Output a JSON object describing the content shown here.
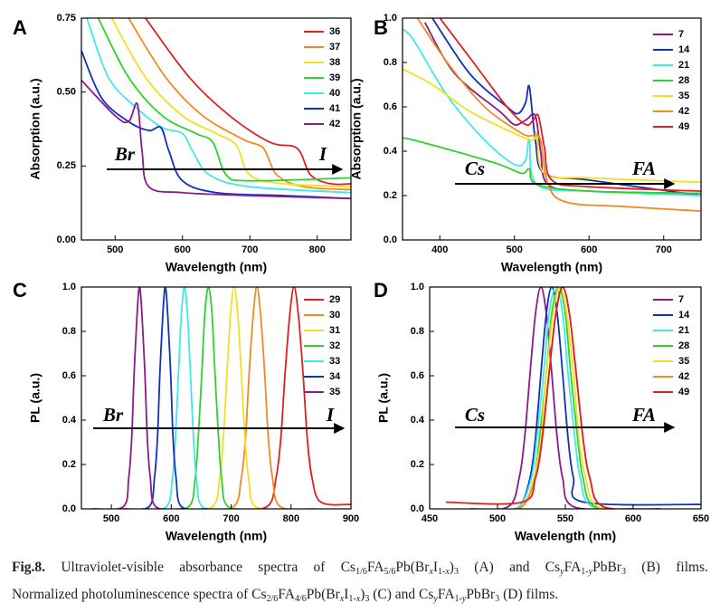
{
  "chart_data": [
    {
      "type": "line",
      "panel": "A",
      "xlabel": "Wavelength (nm)",
      "ylabel": "Absorption (a.u.)",
      "xlim": [
        450,
        850
      ],
      "ylim": [
        0,
        0.75
      ],
      "xticks": [
        500,
        600,
        700,
        800
      ],
      "yticks": [
        {
          "value": 0,
          "label": "0.00"
        },
        {
          "value": 0.25,
          "label": "0.25"
        },
        {
          "value": 0.5,
          "label": "0.50"
        },
        {
          "value": 0.75,
          "label": "0.75"
        }
      ],
      "annotations": [
        "Br",
        "I"
      ],
      "series": [
        {
          "name": "36",
          "color": "#e02020",
          "x": [
            545,
            610,
            670,
            730,
            770,
            790,
            820,
            850
          ],
          "values": [
            0.75,
            0.55,
            0.42,
            0.33,
            0.31,
            0.22,
            0.19,
            0.19
          ]
        },
        {
          "name": "37",
          "color": "#f08a24",
          "x": [
            520,
            575,
            630,
            690,
            720,
            740,
            780,
            850
          ],
          "values": [
            0.75,
            0.55,
            0.42,
            0.34,
            0.31,
            0.22,
            0.18,
            0.17
          ]
        },
        {
          "name": "38",
          "color": "#f0e020",
          "x": [
            495,
            545,
            600,
            650,
            680,
            700,
            750,
            850
          ],
          "values": [
            0.75,
            0.55,
            0.42,
            0.36,
            0.32,
            0.22,
            0.19,
            0.18
          ]
        },
        {
          "name": "39",
          "color": "#30d030",
          "x": [
            475,
            520,
            570,
            620,
            645,
            665,
            700,
            850
          ],
          "values": [
            0.75,
            0.55,
            0.42,
            0.36,
            0.33,
            0.22,
            0.2,
            0.21
          ]
        },
        {
          "name": "40",
          "color": "#40e8e8",
          "x": [
            458,
            490,
            530,
            570,
            600,
            615,
            640,
            700,
            850
          ],
          "values": [
            0.75,
            0.55,
            0.45,
            0.38,
            0.36,
            0.3,
            0.22,
            0.18,
            0.16
          ]
        },
        {
          "name": "41",
          "color": "#1030c0",
          "x": [
            450,
            480,
            520,
            550,
            568,
            580,
            600,
            650,
            750,
            850
          ],
          "values": [
            0.64,
            0.48,
            0.4,
            0.37,
            0.38,
            0.3,
            0.2,
            0.16,
            0.15,
            0.14
          ]
        },
        {
          "name": "42",
          "color": "#8b1a8b",
          "x": [
            450,
            500,
            520,
            533,
            540,
            550,
            600,
            700,
            850
          ],
          "values": [
            0.54,
            0.42,
            0.4,
            0.46,
            0.3,
            0.18,
            0.16,
            0.15,
            0.14
          ]
        }
      ]
    },
    {
      "type": "line",
      "panel": "B",
      "xlabel": "Wavelength (nm)",
      "ylabel": "Absorption (a.u.)",
      "xlim": [
        350,
        750
      ],
      "ylim": [
        0,
        1
      ],
      "xticks": [
        400,
        500,
        600,
        700
      ],
      "yticks": [
        {
          "value": 0,
          "label": "0.0"
        },
        0.2,
        0.4,
        0.6,
        0.8,
        {
          "value": 1,
          "label": "1.0"
        }
      ],
      "annotations": [
        "Cs",
        "FA"
      ],
      "series": [
        {
          "name": "7",
          "color": "#8b1a8b",
          "x": [
            380,
            420,
            480,
            500,
            515,
            528,
            535,
            545,
            600,
            750
          ],
          "values": [
            0.98,
            0.75,
            0.58,
            0.52,
            0.54,
            0.56,
            0.4,
            0.25,
            0.22,
            0.21
          ]
        },
        {
          "name": "14",
          "color": "#1030c0",
          "x": [
            390,
            440,
            490,
            505,
            515,
            520,
            528,
            540,
            600,
            750
          ],
          "values": [
            1,
            0.75,
            0.6,
            0.57,
            0.62,
            0.69,
            0.45,
            0.3,
            0.27,
            0.2
          ]
        },
        {
          "name": "21",
          "color": "#40e8e8",
          "x": [
            350,
            365,
            410,
            460,
            500,
            515,
            520,
            530,
            600,
            750
          ],
          "values": [
            0.95,
            0.9,
            0.65,
            0.45,
            0.34,
            0.36,
            0.45,
            0.25,
            0.22,
            0.2
          ]
        },
        {
          "name": "28",
          "color": "#30d030",
          "x": [
            350,
            365,
            420,
            480,
            510,
            520,
            530,
            600,
            750
          ],
          "values": [
            0.46,
            0.45,
            0.4,
            0.34,
            0.3,
            0.32,
            0.25,
            0.22,
            0.21
          ]
        },
        {
          "name": "35",
          "color": "#f0e020",
          "x": [
            350,
            390,
            440,
            500,
            525,
            530,
            540,
            600,
            750
          ],
          "values": [
            0.77,
            0.7,
            0.58,
            0.48,
            0.45,
            0.48,
            0.3,
            0.28,
            0.26
          ]
        },
        {
          "name": "42",
          "color": "#f08a24",
          "x": [
            370,
            410,
            460,
            510,
            525,
            535,
            545,
            570,
            650,
            750
          ],
          "values": [
            1,
            0.8,
            0.6,
            0.48,
            0.47,
            0.45,
            0.25,
            0.17,
            0.15,
            0.13
          ]
        },
        {
          "name": "49",
          "color": "#e02020",
          "x": [
            400,
            445,
            490,
            515,
            525,
            532,
            540,
            550,
            600,
            750
          ],
          "values": [
            1,
            0.8,
            0.6,
            0.52,
            0.54,
            0.56,
            0.42,
            0.27,
            0.24,
            0.22
          ]
        }
      ]
    },
    {
      "type": "line",
      "panel": "C",
      "xlabel": "Wavelength (nm)",
      "ylabel": "PL (a.u.)",
      "xlim": [
        450,
        900
      ],
      "ylim": [
        0,
        1
      ],
      "xticks": [
        500,
        600,
        700,
        800,
        900
      ],
      "yticks": [
        {
          "value": 0,
          "label": "0.0"
        },
        0.2,
        0.4,
        0.6,
        0.8,
        {
          "value": 1,
          "label": "1.0"
        }
      ],
      "annotations": [
        "Br",
        "I"
      ],
      "series": [
        {
          "name": "29",
          "color": "#e02020",
          "x": [
            700,
            760,
            775,
            783,
            790,
            798,
            805,
            812,
            820,
            827,
            835,
            850,
            900
          ],
          "values": [
            0,
            0.01,
            0.14,
            0.32,
            0.61,
            0.88,
            1,
            0.88,
            0.61,
            0.32,
            0.14,
            0.03,
            0.02
          ]
        },
        {
          "name": "30",
          "color": "#f08a24",
          "x": [
            650,
            704,
            717,
            724,
            730,
            737,
            743,
            749,
            756,
            762,
            769,
            782,
            840
          ],
          "values": [
            0,
            0.01,
            0.14,
            0.32,
            0.61,
            0.88,
            1,
            0.88,
            0.61,
            0.32,
            0.14,
            0.01,
            0
          ]
        },
        {
          "name": "31",
          "color": "#f0e020",
          "x": [
            620,
            669,
            681,
            687,
            693,
            699,
            705,
            711,
            717,
            723,
            729,
            741,
            800
          ],
          "values": [
            0,
            0.01,
            0.14,
            0.32,
            0.61,
            0.88,
            1,
            0.88,
            0.61,
            0.32,
            0.14,
            0.01,
            0
          ]
        },
        {
          "name": "32",
          "color": "#30d030",
          "x": [
            580,
            629,
            640,
            645,
            651,
            656,
            662,
            668,
            673,
            679,
            684,
            695,
            750
          ],
          "values": [
            0,
            0.01,
            0.14,
            0.32,
            0.61,
            0.88,
            1,
            0.88,
            0.61,
            0.32,
            0.14,
            0.01,
            0
          ]
        },
        {
          "name": "33",
          "color": "#40e8e8",
          "x": [
            550,
            592,
            602,
            607,
            612,
            617,
            622,
            627,
            632,
            637,
            642,
            652,
            700
          ],
          "values": [
            0,
            0.01,
            0.14,
            0.32,
            0.61,
            0.88,
            1,
            0.88,
            0.61,
            0.32,
            0.14,
            0.01,
            0
          ]
        },
        {
          "name": "34",
          "color": "#1030c0",
          "x": [
            520,
            563,
            572,
            577,
            581,
            586,
            590,
            594,
            599,
            603,
            608,
            617,
            660
          ],
          "values": [
            0,
            0.01,
            0.14,
            0.32,
            0.61,
            0.88,
            1,
            0.88,
            0.61,
            0.32,
            0.14,
            0.01,
            0
          ]
        },
        {
          "name": "35",
          "color": "#8b1a8b",
          "x": [
            470,
            520,
            529,
            534,
            538,
            543,
            547,
            551,
            556,
            560,
            565,
            574,
            620
          ],
          "values": [
            0,
            0.01,
            0.14,
            0.32,
            0.61,
            0.88,
            1,
            0.88,
            0.61,
            0.32,
            0.14,
            0.01,
            0
          ]
        }
      ]
    },
    {
      "type": "line",
      "panel": "D",
      "xlabel": "Wavelength (nm)",
      "ylabel": "PL (a.u.)",
      "xlim": [
        450,
        650
      ],
      "ylim": [
        0,
        1
      ],
      "xticks": [
        450,
        500,
        550,
        600,
        650
      ],
      "yticks": [
        {
          "value": 0,
          "label": "0.0"
        },
        0.2,
        0.4,
        0.6,
        0.8,
        {
          "value": 1,
          "label": "1.0"
        }
      ],
      "annotations": [
        "Cs",
        "FA"
      ],
      "series": [
        {
          "name": "7",
          "color": "#8b1a8b",
          "x": [
            480,
            508,
            516,
            520,
            524,
            528,
            532,
            536,
            540,
            544,
            548,
            556,
            600
          ],
          "values": [
            0,
            0.01,
            0.14,
            0.32,
            0.61,
            0.88,
            1,
            0.88,
            0.61,
            0.32,
            0.14,
            0.01,
            0
          ]
        },
        {
          "name": "14",
          "color": "#1030c0",
          "x": [
            500,
            516,
            524,
            528,
            532,
            536,
            540,
            544,
            548,
            552,
            556,
            564,
            650
          ],
          "values": [
            0,
            0.01,
            0.14,
            0.32,
            0.61,
            0.88,
            1,
            0.88,
            0.61,
            0.32,
            0.14,
            0.03,
            0.02
          ]
        },
        {
          "name": "21",
          "color": "#40e8e8",
          "x": [
            500,
            516,
            525,
            529,
            534,
            538,
            543,
            548,
            552,
            557,
            561,
            570,
            610
          ],
          "values": [
            0,
            0.01,
            0.14,
            0.32,
            0.61,
            0.88,
            1,
            0.88,
            0.61,
            0.32,
            0.14,
            0.01,
            0
          ]
        },
        {
          "name": "28",
          "color": "#30d030",
          "x": [
            500,
            518,
            527,
            531,
            536,
            540,
            545,
            550,
            554,
            559,
            563,
            572,
            610
          ],
          "values": [
            0,
            0.01,
            0.14,
            0.32,
            0.61,
            0.88,
            1,
            0.88,
            0.61,
            0.32,
            0.14,
            0.01,
            0
          ]
        },
        {
          "name": "35",
          "color": "#f0e020",
          "x": [
            500,
            518,
            527,
            532,
            536,
            541,
            546,
            551,
            556,
            560,
            565,
            574,
            610
          ],
          "values": [
            0,
            0.01,
            0.14,
            0.32,
            0.61,
            0.88,
            1,
            0.88,
            0.61,
            0.32,
            0.14,
            0.01,
            0
          ]
        },
        {
          "name": "42",
          "color": "#f08a24",
          "x": [
            500,
            518,
            528,
            533,
            538,
            543,
            548,
            553,
            558,
            563,
            568,
            578,
            620
          ],
          "values": [
            0,
            0.01,
            0.14,
            0.32,
            0.61,
            0.88,
            1,
            0.88,
            0.61,
            0.32,
            0.14,
            0.01,
            0
          ]
        },
        {
          "name": "49",
          "color": "#e02020",
          "x": [
            462,
            518,
            528,
            533,
            538,
            543,
            548,
            553,
            558,
            563,
            568,
            578,
            620
          ],
          "values": [
            0.03,
            0.03,
            0.14,
            0.32,
            0.61,
            0.88,
            1,
            0.88,
            0.61,
            0.32,
            0.14,
            0.01,
            0
          ]
        }
      ]
    }
  ],
  "caption": [
    [
      {
        "text": "Fig.8.",
        "style": "bold"
      },
      {
        "text": " Ultraviolet-visible absorbance spectra of Cs"
      },
      {
        "text": "1/6",
        "style": "sub"
      },
      {
        "text": "FA"
      },
      {
        "text": "5/6",
        "style": "sub"
      },
      {
        "text": "Pb(Br"
      },
      {
        "text": "x",
        "style": "sub-italic"
      },
      {
        "text": "I"
      },
      {
        "text": "1-",
        "style": "sub"
      },
      {
        "text": "x",
        "style": "sub-italic"
      },
      {
        "text": ")"
      },
      {
        "text": "3",
        "style": "sub"
      },
      {
        "text": " (A) and Cs"
      },
      {
        "text": "y",
        "style": "sub-italic"
      },
      {
        "text": "FA"
      },
      {
        "text": "1-",
        "style": "sub"
      },
      {
        "text": "y",
        "style": "sub-italic"
      },
      {
        "text": "PbBr"
      },
      {
        "text": "3",
        "style": "sub"
      },
      {
        "text": " (B) films."
      }
    ],
    [
      {
        "text": "Normalized photoluminescence spectra of Cs"
      },
      {
        "text": "2/6",
        "style": "sub"
      },
      {
        "text": "FA"
      },
      {
        "text": "4/6",
        "style": "sub"
      },
      {
        "text": "Pb(Br"
      },
      {
        "text": "x",
        "style": "sub-italic"
      },
      {
        "text": "I"
      },
      {
        "text": "1-",
        "style": "sub"
      },
      {
        "text": "x",
        "style": "sub-italic"
      },
      {
        "text": ")"
      },
      {
        "text": "3",
        "style": "sub"
      },
      {
        "text": " (C) and Cs"
      },
      {
        "text": "y",
        "style": "sub-italic"
      },
      {
        "text": "FA"
      },
      {
        "text": "1-",
        "style": "sub"
      },
      {
        "text": "y",
        "style": "sub-italic"
      },
      {
        "text": "PbBr"
      },
      {
        "text": "3",
        "style": "sub"
      },
      {
        "text": " (D) films."
      }
    ]
  ]
}
